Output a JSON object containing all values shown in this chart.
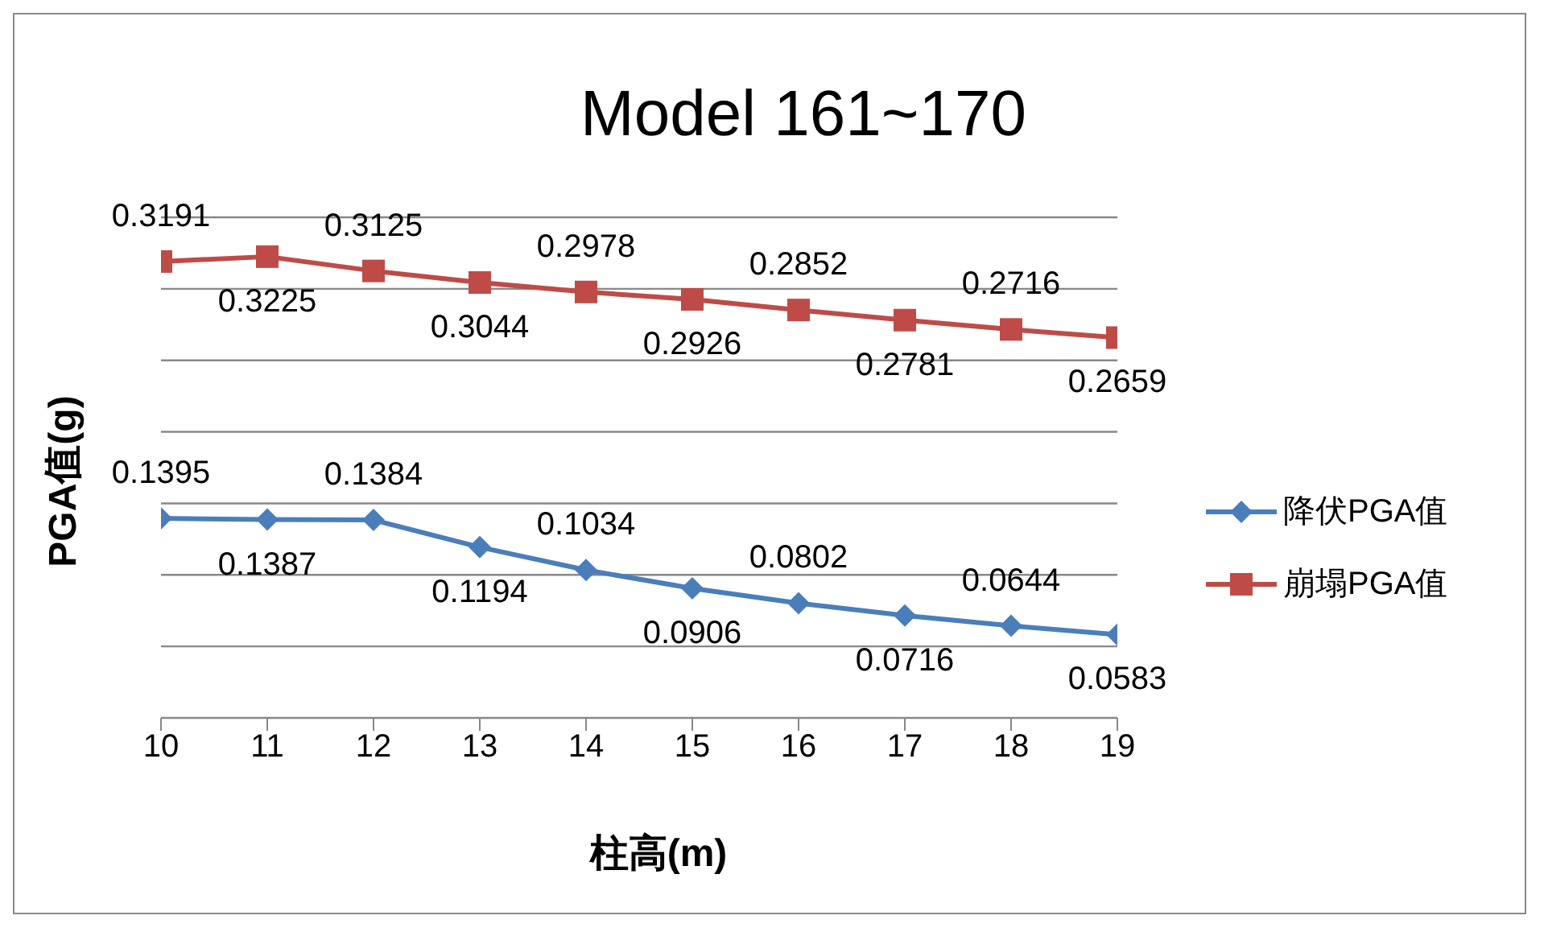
{
  "chart_data": {
    "type": "line",
    "title": "Model 161~170",
    "xlabel": "柱高(m)",
    "ylabel": "PGA值(g)",
    "x": [
      10,
      11,
      12,
      13,
      14,
      15,
      16,
      17,
      18,
      19
    ],
    "series": [
      {
        "name": "降伏PGA值",
        "color": "#4a7ebb",
        "marker": "diamond",
        "values": [
          0.1395,
          0.1387,
          0.1384,
          0.1194,
          0.1034,
          0.0906,
          0.0802,
          0.0716,
          0.0644,
          0.0583
        ]
      },
      {
        "name": "崩塌PGA值",
        "color": "#be4b48",
        "marker": "square",
        "values": [
          0.3191,
          0.3225,
          0.3125,
          0.3044,
          0.2978,
          0.2926,
          0.2852,
          0.2781,
          0.2716,
          0.2659
        ]
      }
    ],
    "xlim": [
      10,
      19
    ],
    "xticks": [
      10,
      11,
      12,
      13,
      14,
      15,
      16,
      17,
      18,
      19
    ],
    "grid": "y",
    "legend": "right",
    "tick_labels": "x",
    "data_labels": true,
    "line_style": "solid"
  }
}
